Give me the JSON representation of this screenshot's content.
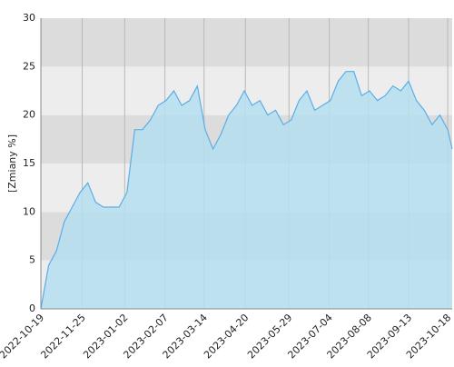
{
  "chart_data": {
    "type": "area",
    "y_label": "[Zmiany %]",
    "x": [
      "2022-10-19",
      "2022-10-26",
      "2022-11-02",
      "2022-11-09",
      "2022-11-16",
      "2022-11-23",
      "2022-11-30",
      "2022-12-07",
      "2022-12-14",
      "2022-12-21",
      "2022-12-28",
      "2023-01-04",
      "2023-01-11",
      "2023-01-18",
      "2023-01-25",
      "2023-02-01",
      "2023-02-08",
      "2023-02-15",
      "2023-02-22",
      "2023-03-01",
      "2023-03-08",
      "2023-03-15",
      "2023-03-22",
      "2023-03-29",
      "2023-04-05",
      "2023-04-12",
      "2023-04-19",
      "2023-04-26",
      "2023-05-03",
      "2023-05-10",
      "2023-05-17",
      "2023-05-24",
      "2023-05-31",
      "2023-06-07",
      "2023-06-14",
      "2023-06-21",
      "2023-06-28",
      "2023-07-05",
      "2023-07-12",
      "2023-07-19",
      "2023-07-26",
      "2023-08-02",
      "2023-08-09",
      "2023-08-16",
      "2023-08-23",
      "2023-08-30",
      "2023-09-06",
      "2023-09-13",
      "2023-09-20",
      "2023-09-27",
      "2023-10-04",
      "2023-10-11",
      "2023-10-18",
      "2023-10-22"
    ],
    "values": [
      0,
      4.5,
      6,
      9,
      10.5,
      12,
      13,
      11,
      10.5,
      10.5,
      10.5,
      12,
      18.5,
      18.5,
      19.5,
      21,
      21.5,
      22.5,
      21,
      21.5,
      23,
      18.5,
      16.5,
      18,
      20,
      21,
      22.5,
      21,
      21.5,
      20,
      20.5,
      19,
      19.5,
      21.5,
      22.5,
      20.5,
      21,
      21.5,
      23.5,
      24.5,
      24.5,
      22,
      22.5,
      21.5,
      22,
      23,
      22.5,
      23.5,
      21.5,
      20.5,
      19,
      20,
      18.5,
      16.5
    ],
    "color": "#5aaee8",
    "fill": "#b5def0",
    "xlim": [
      "2022-10-19",
      "2023-10-22"
    ],
    "xticks": [
      "2022-10-19",
      "2022-11-25",
      "2023-01-02",
      "2023-02-07",
      "2023-03-14",
      "2023-04-20",
      "2023-05-29",
      "2023-07-04",
      "2023-08-08",
      "2023-09-13",
      "2023-10-18"
    ],
    "ylim": [
      0,
      30
    ],
    "yticks": [
      0,
      5,
      10,
      15,
      20,
      25,
      30
    ],
    "grid": true
  }
}
